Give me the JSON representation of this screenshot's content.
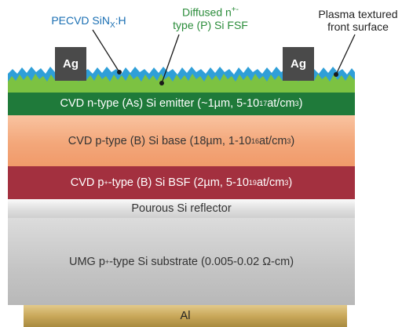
{
  "labels": {
    "pecvd": "PECVD SiN",
    "pecvd_sub": "X",
    "pecvd_tail": ":H",
    "fsf_line1": "Diffused n",
    "fsf_line1_sup": "+-",
    "fsf_line2": "type (P) Si FSF",
    "texture_line1": "Plasma textured",
    "texture_line2": "front surface"
  },
  "contacts": [
    "Ag",
    "Ag"
  ],
  "layers": {
    "emitter": {
      "pre": "CVD n-type (As) Si emitter (~1µm, 5-10",
      "sup": "17",
      "post": " at/cm",
      "sup2": "3",
      "end": ")"
    },
    "base": {
      "pre": "CVD p-type (B) Si base (18µm, 1-10",
      "sup": "16",
      "post": " at/cm",
      "sup2": "3",
      "end": ")"
    },
    "bsf": {
      "pre": "CVD p",
      "sup_a": "+",
      "mid": "-type (B) Si BSF (2µm, 5-10",
      "sup": "19",
      "post": " at/cm",
      "sup2": "3",
      "end": ")"
    },
    "reflector": "Pourous Si reflector",
    "substrate": {
      "pre": "UMG p",
      "sup_a": "+",
      "post": "-type Si substrate (0.005-0.02 Ω-cm)"
    },
    "back": "Al"
  },
  "colors": {
    "pecvd_text": "#1a6fb3",
    "fsf_text": "#2a8c3a",
    "texture_blue": "#2f9fd8",
    "texture_green": "#7cc242",
    "emitter": "#1f7a3a",
    "base": "#f3a77a",
    "bsf": "#a3303f",
    "reflector": "#e8e8e8",
    "substrate": "#c8c8c8",
    "back": "#c9a85a"
  }
}
